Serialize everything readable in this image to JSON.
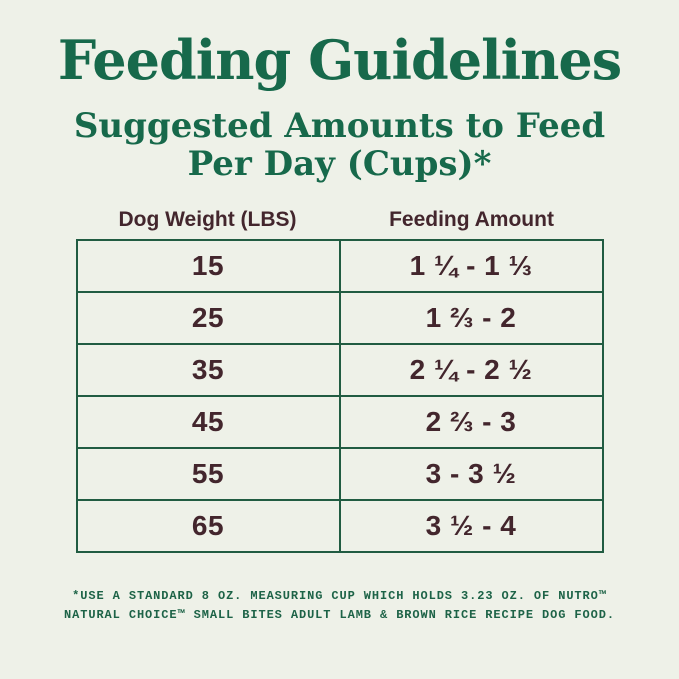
{
  "page": {
    "title": "Feeding Guidelines",
    "subtitle_line1": "Suggested Amounts to Feed",
    "subtitle_line2": "Per Day (Cups)*"
  },
  "table": {
    "columns": [
      "Dog Weight (LBS)",
      "Feeding Amount"
    ],
    "rows": [
      {
        "weight": "15",
        "amount": "1 ¼ - 1 ⅓"
      },
      {
        "weight": "25",
        "amount": "1 ⅔ - 2"
      },
      {
        "weight": "35",
        "amount": "2 ¼ - 2 ½"
      },
      {
        "weight": "45",
        "amount": "2 ⅔ - 3"
      },
      {
        "weight": "55",
        "amount": "3 - 3 ½"
      },
      {
        "weight": "65",
        "amount": "3 ½ - 4"
      }
    ]
  },
  "footnote": {
    "line1": "*USE A STANDARD 8 OZ. MEASURING CUP WHICH HOLDS 3.23 OZ. OF NUTRO™",
    "line2": "NATURAL CHOICE™ SMALL BITES ADULT LAMB & BROWN RICE RECIPE DOG FOOD."
  },
  "colors": {
    "background": "#eef1e8",
    "title_green": "#17694b",
    "table_border_green": "#215c42",
    "text_brown": "#43262d",
    "footnote_green": "#1d6347"
  }
}
